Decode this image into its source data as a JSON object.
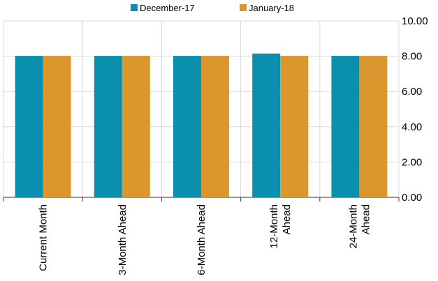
{
  "chart_data": {
    "type": "bar",
    "categories": [
      [
        "Current Month"
      ],
      [
        "3-Month Ahead"
      ],
      [
        "6-Month Ahead"
      ],
      [
        "12-Month",
        "Ahead"
      ],
      [
        "24-Month",
        "Ahead"
      ]
    ],
    "series": [
      {
        "name": "December-17",
        "color": "#0b8fae",
        "values": [
          8.02,
          8.02,
          8.02,
          8.15,
          8.02
        ]
      },
      {
        "name": "January-18",
        "color": "#dc962e",
        "values": [
          8.02,
          8.02,
          8.02,
          8.02,
          8.02
        ]
      }
    ],
    "y_ticks": [
      "0.00",
      "2.00",
      "4.00",
      "6.00",
      "8.00",
      "10.00"
    ],
    "ylim": [
      0,
      10
    ],
    "y_axis_position": "right",
    "grid": true,
    "legend_position": "top"
  }
}
